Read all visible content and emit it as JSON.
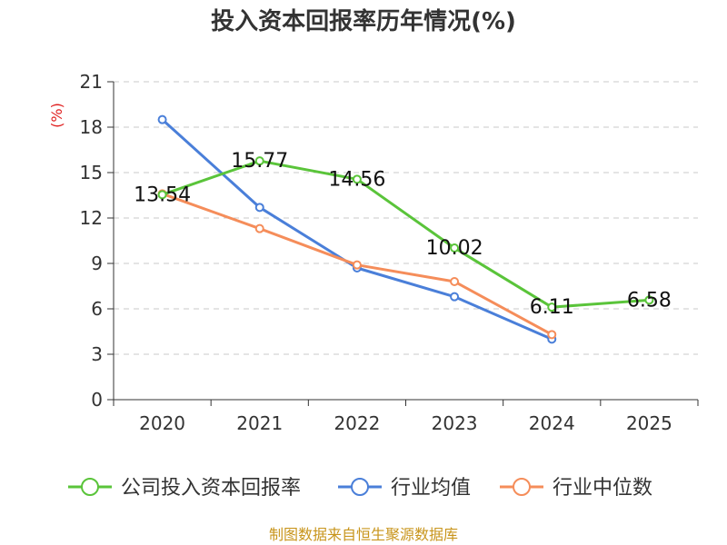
{
  "chart_data": {
    "type": "line",
    "title": "投入资本回报率历年情况(%)",
    "xlabel": "",
    "ylabel": "(%)",
    "categories": [
      "2020",
      "2021",
      "2022",
      "2023",
      "2024",
      "2025"
    ],
    "ylim": [
      0,
      21
    ],
    "yticks": [
      0,
      3,
      6,
      9,
      12,
      15,
      18,
      21
    ],
    "grid": true,
    "legend_position": "bottom",
    "series": [
      {
        "name": "公司投入资本回报率",
        "color": "#5ac43a",
        "values": [
          13.54,
          15.77,
          14.56,
          10.02,
          6.11,
          6.58
        ],
        "labels": [
          "13.54",
          "15.77",
          "14.56",
          "10.02",
          "6.11",
          "6.58"
        ]
      },
      {
        "name": "行业均值",
        "color": "#4a7fd9",
        "values": [
          18.5,
          12.7,
          8.7,
          6.8,
          4.0,
          null
        ]
      },
      {
        "name": "行业中位数",
        "color": "#f58d5a",
        "values": [
          13.6,
          11.3,
          8.9,
          7.8,
          4.3,
          null
        ]
      }
    ],
    "source": "制图数据来自恒生聚源数据库"
  }
}
